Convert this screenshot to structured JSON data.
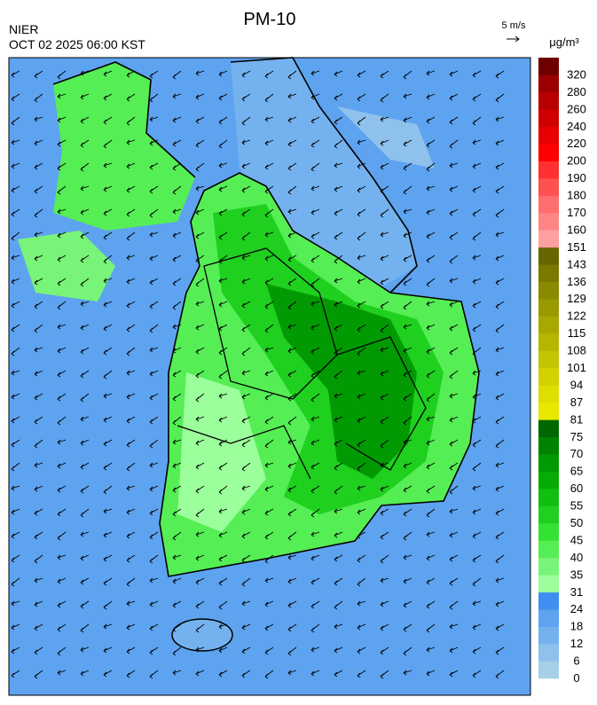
{
  "header": {
    "title": "PM-10",
    "agency": "NIER",
    "datetime": "OCT 02 2025 06:00 KST",
    "wind_scale": "5 m/s",
    "unit": "μg/m³"
  },
  "colorbar": {
    "levels": [
      0,
      6,
      12,
      18,
      24,
      31,
      35,
      40,
      45,
      50,
      55,
      60,
      65,
      70,
      75,
      81,
      87,
      94,
      101,
      108,
      115,
      122,
      129,
      136,
      143,
      151,
      160,
      170,
      180,
      190,
      200,
      220,
      240,
      260,
      280,
      320
    ],
    "colors": [
      "#a6cfe8",
      "#8ec1ec",
      "#74b2ef",
      "#5ea3f0",
      "#3f8ff0",
      "#9bff9b",
      "#78f478",
      "#55ee55",
      "#33e233",
      "#1fd01f",
      "#10bf10",
      "#05ac05",
      "#029a02",
      "#008400",
      "#006800",
      "#e8e800",
      "#dede00",
      "#d2d200",
      "#c4c400",
      "#b6b600",
      "#a8a800",
      "#999900",
      "#8a8a00",
      "#7a7a00",
      "#666600",
      "#ffa0a0",
      "#ff8585",
      "#ff6e6e",
      "#ff5050",
      "#ff3030",
      "#ff0000",
      "#e80000",
      "#d00000",
      "#b80000",
      "#9a0000",
      "#700000"
    ]
  }
}
